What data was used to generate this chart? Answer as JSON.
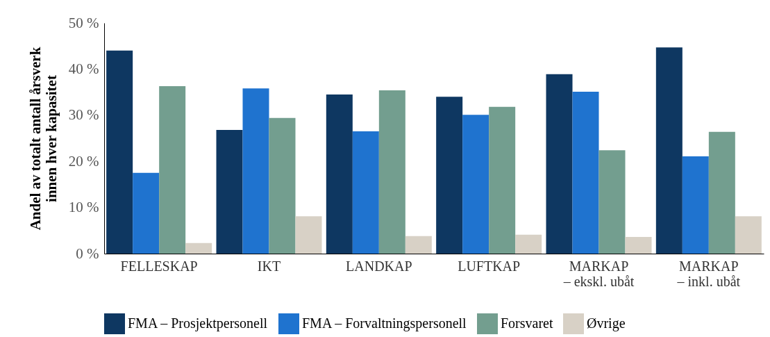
{
  "chart_data": {
    "type": "bar",
    "ylabel": "Andel av totalt antall årsverk\ninnen hver kapasitet",
    "categories": [
      "FELLESKAP",
      "IKT",
      "LANDKAP",
      "LUFTKAP",
      "MARKAP\n– ekskl. ubåt",
      "MARKAP\n– inkl. ubåt"
    ],
    "series": [
      {
        "name": "FMA – Prosjektpersonell",
        "color": "#0e3761",
        "values": [
          44.0,
          26.8,
          34.5,
          34.0,
          38.9,
          44.7
        ]
      },
      {
        "name": "FMA – Forvaltningspersonell",
        "color": "#1f73cf",
        "values": [
          17.5,
          35.8,
          26.5,
          30.1,
          35.1,
          21.1
        ]
      },
      {
        "name": "Forsvaret",
        "color": "#739e8f",
        "values": [
          36.3,
          29.4,
          35.4,
          31.8,
          22.4,
          26.4
        ]
      },
      {
        "name": "Øvrige",
        "color": "#d8d1c6",
        "values": [
          2.3,
          8.1,
          3.8,
          4.1,
          3.6,
          8.1
        ]
      }
    ],
    "ylim": [
      0,
      50
    ],
    "yticks": [
      {
        "value": 0,
        "label": "0 %"
      },
      {
        "value": 10,
        "label": "10 %"
      },
      {
        "value": 20,
        "label": "20 %"
      },
      {
        "value": 30,
        "label": "30 %"
      },
      {
        "value": 40,
        "label": "40 %"
      },
      {
        "value": 50,
        "label": "50 %"
      }
    ],
    "grid": false,
    "legend": "bottom"
  }
}
